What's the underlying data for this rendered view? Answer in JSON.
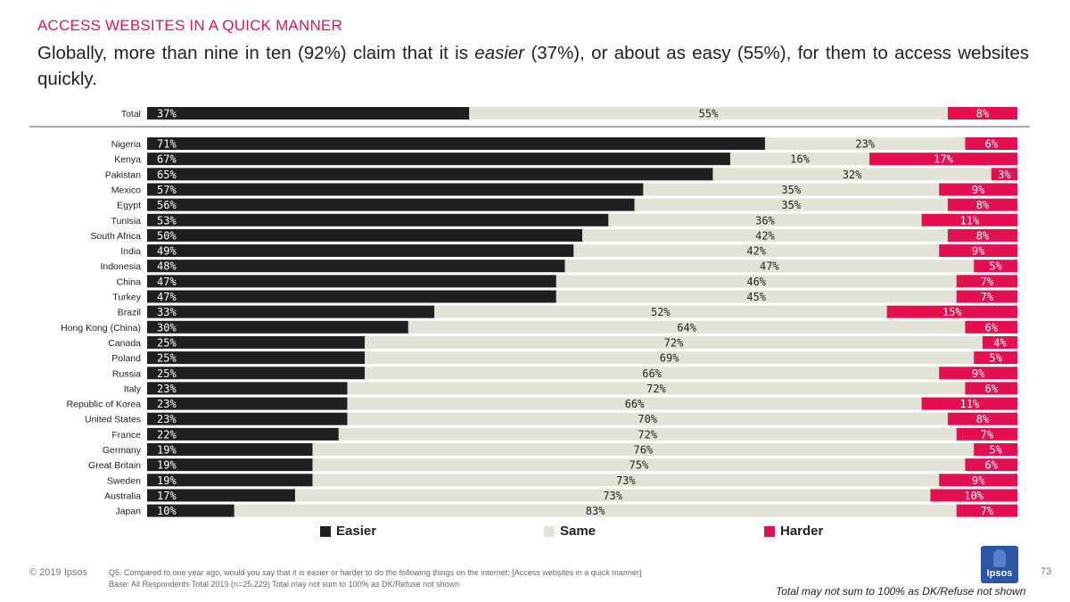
{
  "header": {
    "section_title": "ACCESS WEBSITES IN A QUICK MANNER",
    "headline_part1": "Globally, more than nine in ten (92%) claim that it is ",
    "headline_italic": "easier",
    "headline_part2": " (37%), or about as easy (55%), for them to access websites quickly."
  },
  "legend": {
    "easier": "Easier",
    "same": "Same",
    "harder": "Harder"
  },
  "colors": {
    "easier": "#1f1f1f",
    "same": "#e3e2d7",
    "harder": "#e2104f",
    "title": "#dd1450"
  },
  "chart_data": {
    "type": "bar",
    "orientation": "horizontal",
    "stacked": true,
    "categories": [
      "Total",
      "Nigeria",
      "Kenya",
      "Pakistan",
      "Mexico",
      "Egypt",
      "Tunisia",
      "South Africa",
      "India",
      "Indonesia",
      "China",
      "Turkey",
      "Brazil",
      "Hong Kong (China)",
      "Canada",
      "Poland",
      "Russia",
      "Italy",
      "Republic of Korea",
      "United States",
      "France",
      "Germany",
      "Great Britain",
      "Sweden",
      "Australia",
      "Japan"
    ],
    "series": [
      {
        "name": "Easier",
        "values": [
          37,
          71,
          67,
          65,
          57,
          56,
          53,
          50,
          49,
          48,
          47,
          47,
          33,
          30,
          25,
          25,
          25,
          23,
          23,
          23,
          22,
          19,
          19,
          19,
          17,
          10
        ]
      },
      {
        "name": "Same",
        "values": [
          55,
          23,
          16,
          32,
          35,
          35,
          36,
          42,
          42,
          47,
          46,
          45,
          52,
          64,
          72,
          69,
          66,
          72,
          66,
          70,
          72,
          76,
          75,
          73,
          73,
          83
        ]
      },
      {
        "name": "Harder",
        "values": [
          8,
          6,
          17,
          3,
          9,
          8,
          11,
          8,
          9,
          5,
          7,
          7,
          15,
          6,
          4,
          5,
          9,
          6,
          11,
          8,
          7,
          5,
          6,
          9,
          10,
          7
        ]
      }
    ],
    "xlim": [
      0,
      100
    ],
    "value_suffix": "%"
  },
  "footer": {
    "copyright": "© 2019 Ipsos",
    "question": "Q5. Compared to one year ago, would you say that it is easier or harder to do the following things on the internet: [Access websites in a quick manner]",
    "base": "Base: All Respondents Total 2019 (n=25,229) Total may not sum to 100% as DK/Refuse not shown",
    "logo_text": "Ipsos",
    "page_number": "73",
    "note": "Total may not sum to 100% as DK/Refuse not shown"
  }
}
